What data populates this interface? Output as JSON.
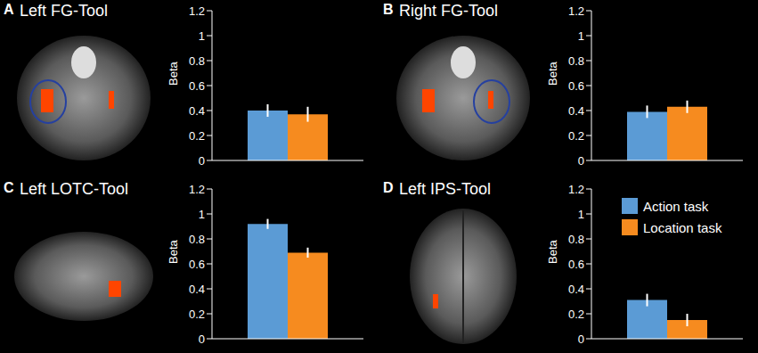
{
  "chart_data": [
    {
      "panel": "A",
      "type": "bar",
      "title": "Left FG-Tool",
      "categories": [
        null
      ],
      "ylabel": "Beta",
      "ylim": [
        0,
        1.2
      ],
      "yticks": [
        0,
        0.2,
        0.4,
        0.6,
        0.8,
        1,
        1.2
      ],
      "series": [
        {
          "name": "Action task",
          "color": "#5b9bd5",
          "values": [
            0.4
          ],
          "error": [
            0.05
          ]
        },
        {
          "name": "Location task",
          "color": "#f68b1f",
          "values": [
            0.37
          ],
          "error": [
            0.06
          ]
        }
      ]
    },
    {
      "panel": "B",
      "type": "bar",
      "title": "Right FG-Tool",
      "categories": [
        null
      ],
      "ylabel": "Beta",
      "ylim": [
        0,
        1.2
      ],
      "yticks": [
        0,
        0.2,
        0.4,
        0.6,
        0.8,
        1,
        1.2
      ],
      "series": [
        {
          "name": "Action task",
          "color": "#5b9bd5",
          "values": [
            0.39
          ],
          "error": [
            0.05
          ]
        },
        {
          "name": "Location task",
          "color": "#f68b1f",
          "values": [
            0.43
          ],
          "error": [
            0.05
          ]
        }
      ]
    },
    {
      "panel": "C",
      "type": "bar",
      "title": "Left LOTC-Tool",
      "categories": [
        null
      ],
      "ylabel": "Beta",
      "ylim": [
        0,
        1.2
      ],
      "yticks": [
        0,
        0.2,
        0.4,
        0.6,
        0.8,
        1,
        1.2
      ],
      "series": [
        {
          "name": "Action task",
          "color": "#5b9bd5",
          "values": [
            0.92
          ],
          "error": [
            0.04
          ]
        },
        {
          "name": "Location task",
          "color": "#f68b1f",
          "values": [
            0.69
          ],
          "error": [
            0.04
          ]
        }
      ]
    },
    {
      "panel": "D",
      "type": "bar",
      "title": "Left IPS-Tool",
      "categories": [
        null
      ],
      "ylabel": "Beta",
      "ylim": [
        0,
        1.2
      ],
      "yticks": [
        0,
        0.2,
        0.4,
        0.6,
        0.8,
        1,
        1.2
      ],
      "legend": "upper right",
      "series": [
        {
          "name": "Action task",
          "color": "#5b9bd5",
          "values": [
            0.31
          ],
          "error": [
            0.05
          ]
        },
        {
          "name": "Location task",
          "color": "#f68b1f",
          "values": [
            0.15
          ],
          "error": [
            0.05
          ]
        }
      ]
    }
  ]
}
